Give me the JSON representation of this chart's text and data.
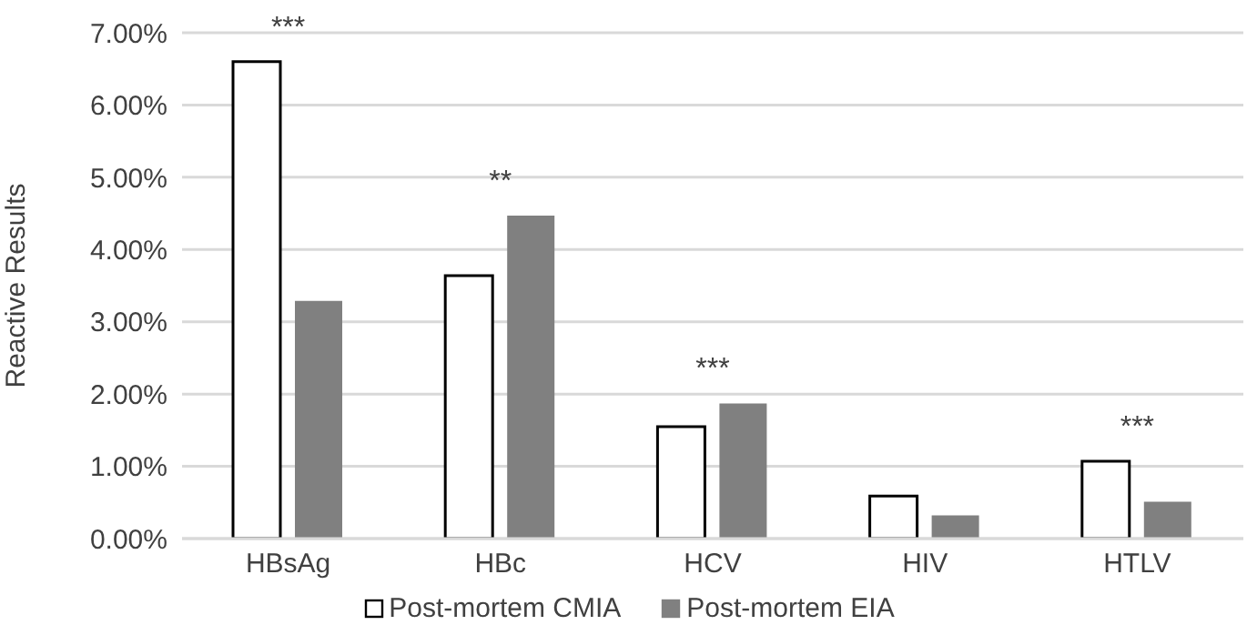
{
  "chart_data": {
    "type": "bar",
    "ylabel": "Reactive Results",
    "categories": [
      "HBsAg",
      "HBc",
      "HCV",
      "HIV",
      "HTLV"
    ],
    "series": [
      {
        "name": "Post-mortem CMIA",
        "color": "#ffffff",
        "values": [
          6.6,
          3.64,
          1.55,
          0.59,
          1.07
        ]
      },
      {
        "name": "Post-mortem EIA",
        "color": "#808080",
        "values": [
          3.29,
          4.47,
          1.87,
          0.32,
          0.51
        ]
      }
    ],
    "ylim": [
      0,
      7
    ],
    "yticks": [
      {
        "value": 0,
        "label": "0.00%"
      },
      {
        "value": 1,
        "label": "1.00%"
      },
      {
        "value": 2,
        "label": "2.00%"
      },
      {
        "value": 3,
        "label": "3.00%"
      },
      {
        "value": 4,
        "label": "4.00%"
      },
      {
        "value": 5,
        "label": "5.00%"
      },
      {
        "value": 6,
        "label": "6.00%"
      },
      {
        "value": 7,
        "label": "7.00%"
      }
    ],
    "grid": "y",
    "legend": "bottom",
    "annotations": [
      {
        "text": "***",
        "x": "HBsAg",
        "y": 6.6
      },
      {
        "text": "**",
        "x": "HBc",
        "y": 4.47
      },
      {
        "text": "***",
        "x": "HCV",
        "y": 1.87
      },
      {
        "text": "***",
        "x": "HTLV",
        "y": 1.07
      }
    ]
  }
}
